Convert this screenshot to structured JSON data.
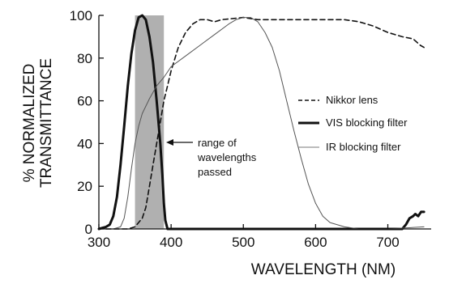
{
  "chart_data": {
    "type": "line",
    "xlabel": "WAVELENGTH (NM)",
    "ylabel_lines": [
      "% NORMALIZED",
      "TRANSMITTANCE"
    ],
    "xlim": [
      300,
      760
    ],
    "ylim": [
      0,
      100
    ],
    "xticks": [
      300,
      400,
      500,
      600,
      700
    ],
    "yticks": [
      0,
      20,
      40,
      60,
      80,
      100
    ],
    "shaded_band": {
      "x": [
        350,
        390
      ],
      "color": "#b0b0b0"
    },
    "annotation": {
      "lines": [
        "range of",
        "wavelengths",
        "passed"
      ],
      "points_to_x": 390,
      "at_y": 40
    },
    "legend": {
      "placement": "right"
    },
    "series": [
      {
        "name": "Nikkor lens",
        "style": "dashed",
        "color": "#111111",
        "points": [
          [
            310,
            0
          ],
          [
            340,
            0
          ],
          [
            350,
            1
          ],
          [
            360,
            5
          ],
          [
            365,
            10
          ],
          [
            370,
            20
          ],
          [
            375,
            30
          ],
          [
            380,
            40
          ],
          [
            385,
            50
          ],
          [
            390,
            60
          ],
          [
            395,
            67
          ],
          [
            400,
            74
          ],
          [
            410,
            85
          ],
          [
            420,
            92
          ],
          [
            430,
            96
          ],
          [
            440,
            98
          ],
          [
            450,
            98
          ],
          [
            460,
            97
          ],
          [
            470,
            98
          ],
          [
            500,
            99
          ],
          [
            520,
            98
          ],
          [
            550,
            98
          ],
          [
            600,
            98
          ],
          [
            640,
            98
          ],
          [
            660,
            97
          ],
          [
            680,
            95
          ],
          [
            700,
            92
          ],
          [
            720,
            90
          ],
          [
            735,
            89
          ],
          [
            745,
            86
          ],
          [
            750,
            85
          ]
        ]
      },
      {
        "name": "VIS blocking filter",
        "style": "solid-thick",
        "color": "#111111",
        "points": [
          [
            300,
            0
          ],
          [
            310,
            1
          ],
          [
            315,
            2
          ],
          [
            320,
            6
          ],
          [
            325,
            15
          ],
          [
            330,
            30
          ],
          [
            335,
            48
          ],
          [
            340,
            67
          ],
          [
            345,
            82
          ],
          [
            350,
            93
          ],
          [
            355,
            99
          ],
          [
            360,
            100
          ],
          [
            365,
            98
          ],
          [
            370,
            90
          ],
          [
            375,
            78
          ],
          [
            380,
            60
          ],
          [
            385,
            40
          ],
          [
            388,
            25
          ],
          [
            390,
            12
          ],
          [
            392,
            4
          ],
          [
            395,
            0
          ],
          [
            720,
            0
          ],
          [
            725,
            2
          ],
          [
            730,
            5
          ],
          [
            735,
            6
          ],
          [
            738,
            7
          ],
          [
            742,
            6
          ],
          [
            746,
            8
          ],
          [
            750,
            8
          ]
        ]
      },
      {
        "name": "IR blocking filter",
        "style": "solid-thin",
        "color": "#555555",
        "points": [
          [
            320,
            0
          ],
          [
            330,
            1
          ],
          [
            335,
            5
          ],
          [
            340,
            15
          ],
          [
            345,
            28
          ],
          [
            350,
            40
          ],
          [
            355,
            48
          ],
          [
            360,
            54
          ],
          [
            370,
            61
          ],
          [
            380,
            67
          ],
          [
            390,
            71
          ],
          [
            400,
            76
          ],
          [
            420,
            81
          ],
          [
            440,
            86
          ],
          [
            460,
            91
          ],
          [
            480,
            96
          ],
          [
            490,
            98
          ],
          [
            500,
            99
          ],
          [
            510,
            99
          ],
          [
            520,
            97
          ],
          [
            530,
            92
          ],
          [
            540,
            85
          ],
          [
            550,
            74
          ],
          [
            560,
            60
          ],
          [
            570,
            46
          ],
          [
            580,
            33
          ],
          [
            590,
            21
          ],
          [
            600,
            12
          ],
          [
            610,
            6
          ],
          [
            620,
            3
          ],
          [
            640,
            1
          ],
          [
            660,
            0
          ],
          [
            700,
            0
          ],
          [
            750,
            1
          ]
        ]
      }
    ]
  }
}
